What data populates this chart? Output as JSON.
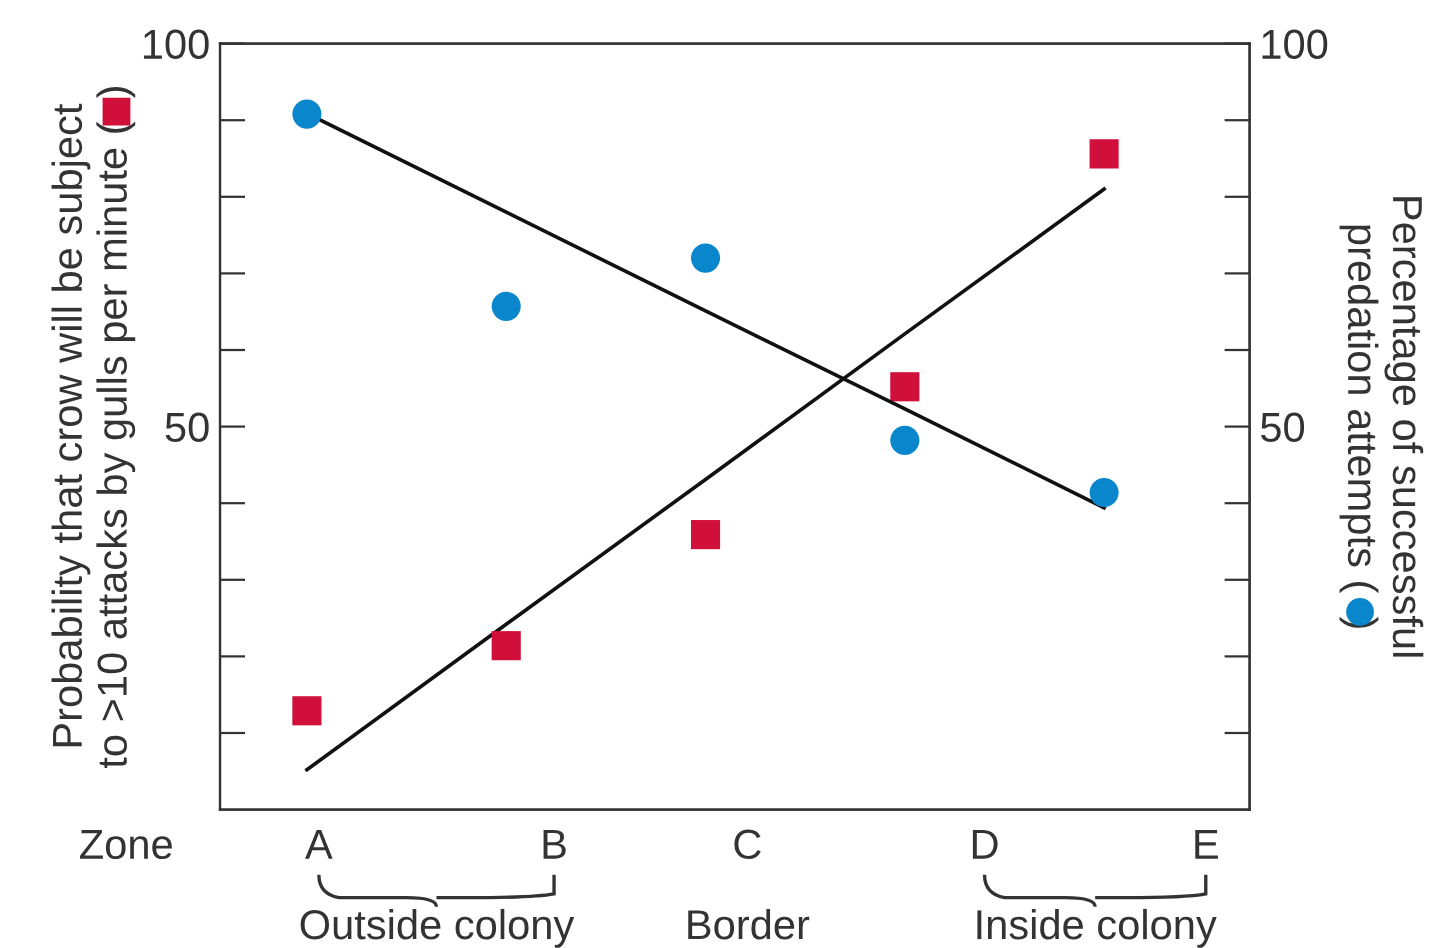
{
  "chart_data": {
    "type": "scatter",
    "xlabel": "Zone",
    "ylabel": "Probability that crow will be subject\nto >10 attacks by gulls per minute (  )",
    "y2label": "Percentage of successful\npredation attempts (  )",
    "categories": [
      null,
      null,
      null,
      null,
      null
    ],
    "ylim": [
      0,
      100
    ],
    "yticks": [
      {
        "value": 10,
        "label": null
      },
      {
        "value": 20,
        "label": null
      },
      {
        "value": 30,
        "label": null
      },
      {
        "value": 40,
        "label": null
      },
      50,
      {
        "value": 60,
        "label": null
      },
      {
        "value": 70,
        "label": null
      },
      {
        "value": 80,
        "label": null
      },
      {
        "value": 90,
        "label": null
      },
      100
    ],
    "y2lim": [
      0,
      100
    ],
    "y2ticks": [
      {
        "value": 10,
        "label": null
      },
      {
        "value": 20,
        "label": null
      },
      {
        "value": 30,
        "label": null
      },
      {
        "value": 40,
        "label": null
      },
      50,
      {
        "value": 60,
        "label": null
      },
      {
        "value": 70,
        "label": null
      },
      {
        "value": 80,
        "label": null
      },
      {
        "value": 90,
        "label": null
      },
      100
    ],
    "series": [
      {
        "marker": "square",
        "color": "#d0103a",
        "values": [
          12.9,
          21.4,
          35.9,
          55.2,
          85.6
        ]
      },
      {
        "marker": "circle",
        "color": "#0a86cc",
        "axis": "y2",
        "values": [
          90.8,
          65.7,
          72.0,
          48.2,
          41.4
        ]
      },
      {
        "type": "line",
        "color": "#111111",
        "values": [
          5.2,
          24.2,
          43.1,
          62.1,
          81.0
        ]
      },
      {
        "type": "line",
        "color": "#111111",
        "axis": "y2",
        "values": [
          90.9,
          78.0,
          65.1,
          52.3,
          39.4
        ]
      }
    ],
    "annotations": [
      "A",
      "B",
      "C",
      "D",
      "E",
      "Outside colony",
      "Border",
      "Inside colony"
    ],
    "grid": false
  }
}
